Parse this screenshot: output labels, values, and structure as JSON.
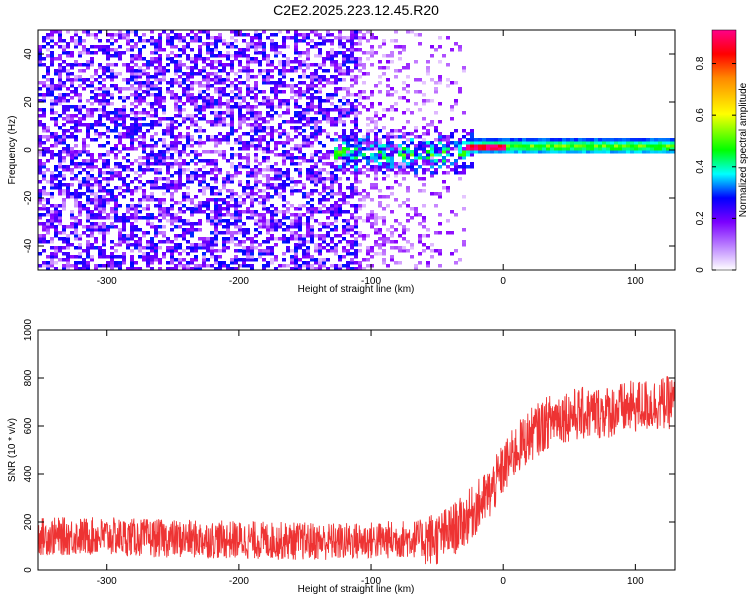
{
  "figure": {
    "title": "C2E2.2025.223.12.45.R20"
  },
  "chart_data": [
    {
      "type": "heatmap",
      "title": "C2E2.2025.223.12.45.R20",
      "xlabel": "Height of straight line (km)",
      "ylabel": "Frequency (Hz)",
      "xlim": [
        -352,
        130
      ],
      "ylim": [
        -50,
        50
      ],
      "xticks": [
        -300,
        -200,
        -100,
        0,
        100
      ],
      "yticks": [
        -40,
        -20,
        0,
        20,
        40
      ],
      "colorbar": {
        "label": "Normalized spectral amplitude",
        "range": [
          0,
          0.93
        ],
        "ticks": [
          0,
          0.2,
          0.4,
          0.6,
          0.8
        ],
        "colormap": [
          "#ffffff",
          "#8a00ff",
          "#0000ff",
          "#00ffff",
          "#00ff00",
          "#ffff00",
          "#ff8800",
          "#ff0000",
          "#ff0088"
        ]
      },
      "regions": [
        {
          "x_range": [
            -352,
            -110
          ],
          "freq_range": [
            -50,
            50
          ],
          "level": 0.1,
          "pattern": "broadband noise"
        },
        {
          "x_range": [
            -110,
            -30
          ],
          "freq_range": [
            -50,
            50
          ],
          "level": 0.05,
          "pattern": "sparse noise"
        },
        {
          "x_range": [
            -130,
            -25
          ],
          "freq_range": [
            -10,
            8
          ],
          "level": 0.3,
          "pattern": "scattered line"
        },
        {
          "x_range": [
            -30,
            130
          ],
          "freq_center": 1,
          "freq_halfwidth": 3,
          "level": 0.45,
          "pattern": "steady line"
        }
      ]
    },
    {
      "type": "line",
      "xlabel": "Height of straight line (km)",
      "ylabel": "SNR (10 * v/v)",
      "xlim": [
        -352,
        130
      ],
      "ylim": [
        0,
        1000
      ],
      "xticks": [
        -300,
        -200,
        -100,
        0,
        100
      ],
      "yticks": [
        0,
        200,
        400,
        600,
        800,
        1000
      ],
      "series_color": "#ee3333",
      "trend": {
        "x": [
          -352,
          -300,
          -250,
          -200,
          -150,
          -120,
          -90,
          -70,
          -50,
          -40,
          -30,
          -20,
          -10,
          0,
          10,
          20,
          30,
          40,
          60,
          80,
          100,
          130
        ],
        "y": [
          140,
          140,
          130,
          125,
          120,
          118,
          125,
          130,
          130,
          160,
          200,
          260,
          320,
          420,
          500,
          560,
          600,
          640,
          650,
          660,
          680,
          700
        ]
      },
      "noise_amplitude": 80
    }
  ]
}
